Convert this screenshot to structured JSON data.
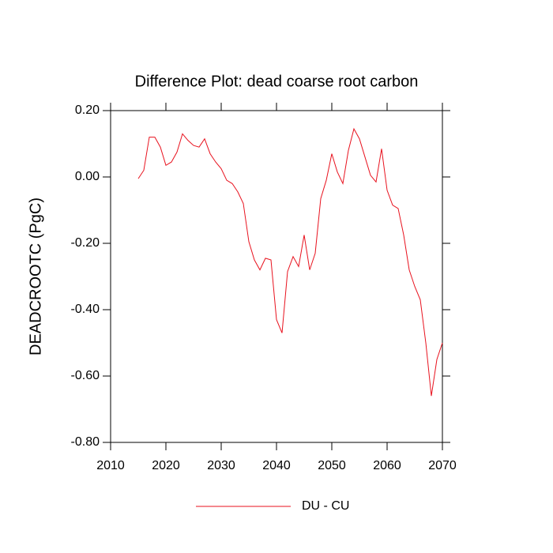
{
  "chart_data": {
    "type": "line",
    "title": "Difference Plot: dead coarse root carbon",
    "y_label": "DEADCROOTC  (PgC)",
    "x": [
      2015,
      2016,
      2017,
      2018,
      2019,
      2020,
      2021,
      2022,
      2023,
      2024,
      2025,
      2026,
      2027,
      2028,
      2029,
      2030,
      2031,
      2032,
      2033,
      2034,
      2035,
      2036,
      2037,
      2038,
      2039,
      2040,
      2041,
      2042,
      2043,
      2044,
      2045,
      2046,
      2047,
      2048,
      2049,
      2050,
      2051,
      2052,
      2053,
      2054,
      2055,
      2056,
      2057,
      2058,
      2059,
      2060,
      2061,
      2062,
      2063,
      2064,
      2065,
      2066,
      2067,
      2068,
      2069,
      2070
    ],
    "series": [
      {
        "name": "DU - CU",
        "color": "#e8121e",
        "values": [
          -0.005,
          0.02,
          0.12,
          0.12,
          0.09,
          0.035,
          0.045,
          0.075,
          0.13,
          0.11,
          0.095,
          0.09,
          0.115,
          0.07,
          0.045,
          0.025,
          -0.01,
          -0.02,
          -0.045,
          -0.08,
          -0.195,
          -0.25,
          -0.28,
          -0.245,
          -0.25,
          -0.43,
          -0.47,
          -0.285,
          -0.24,
          -0.27,
          -0.175,
          -0.28,
          -0.23,
          -0.065,
          -0.01,
          0.07,
          0.015,
          -0.02,
          0.08,
          0.145,
          0.115,
          0.06,
          0.005,
          -0.015,
          0.085,
          -0.04,
          -0.085,
          -0.095,
          -0.175,
          -0.28,
          -0.33,
          -0.37,
          -0.5,
          -0.66,
          -0.55,
          -0.5
        ]
      }
    ],
    "xlim": [
      2010,
      2070
    ],
    "xticks": [
      2010,
      2020,
      2030,
      2040,
      2050,
      2060,
      2070
    ],
    "ylim": [
      -0.8,
      0.2
    ],
    "yticks": [
      {
        "value": -0.8,
        "label": "-0.80"
      },
      {
        "value": -0.6,
        "label": "-0.60"
      },
      {
        "value": -0.4,
        "label": "-0.40"
      },
      {
        "value": -0.2,
        "label": "-0.20"
      },
      {
        "value": 0,
        "label": "0.00"
      },
      {
        "value": 0.2,
        "label": "0.20"
      }
    ],
    "grid": false,
    "legend": "bottom"
  }
}
